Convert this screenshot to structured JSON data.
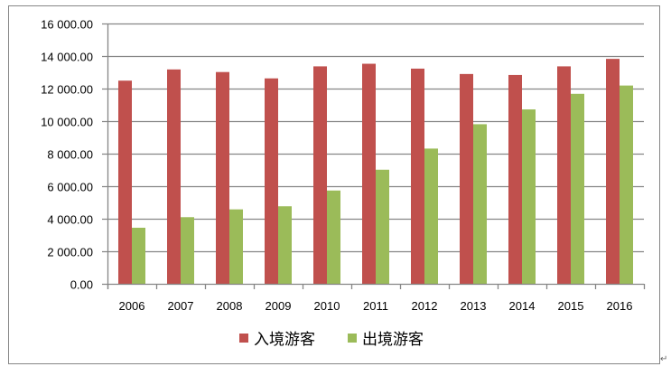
{
  "chart_data": {
    "type": "bar",
    "title": "",
    "xlabel": "",
    "ylabel": "",
    "ylim": [
      0,
      16000
    ],
    "yticks": [
      0,
      2000,
      4000,
      6000,
      8000,
      10000,
      12000,
      14000,
      16000
    ],
    "ytick_labels": [
      "0.00",
      "2 000.00",
      "4 000.00",
      "6 000.00",
      "8 000.00",
      "10 000.00",
      "12 000.00",
      "14 000.00",
      "16 000.00"
    ],
    "grid": true,
    "legend_position": "bottom",
    "categories": [
      "2006",
      "2007",
      "2008",
      "2009",
      "2010",
      "2011",
      "2012",
      "2013",
      "2014",
      "2015",
      "2016"
    ],
    "series": [
      {
        "name": "入境游客",
        "color": "#C0504D",
        "values": [
          12500,
          13190,
          13030,
          12640,
          13380,
          13540,
          13240,
          12910,
          12850,
          13380,
          13840
        ]
      },
      {
        "name": "出境游客",
        "color": "#9BBB59",
        "values": [
          3450,
          4100,
          4580,
          4770,
          5740,
          7020,
          8320,
          9820,
          10730,
          11690,
          12200
        ]
      }
    ]
  },
  "colors": {
    "grid": "#868686",
    "border": "#868686",
    "text": "#000000"
  },
  "paragraph_mark": "↵"
}
